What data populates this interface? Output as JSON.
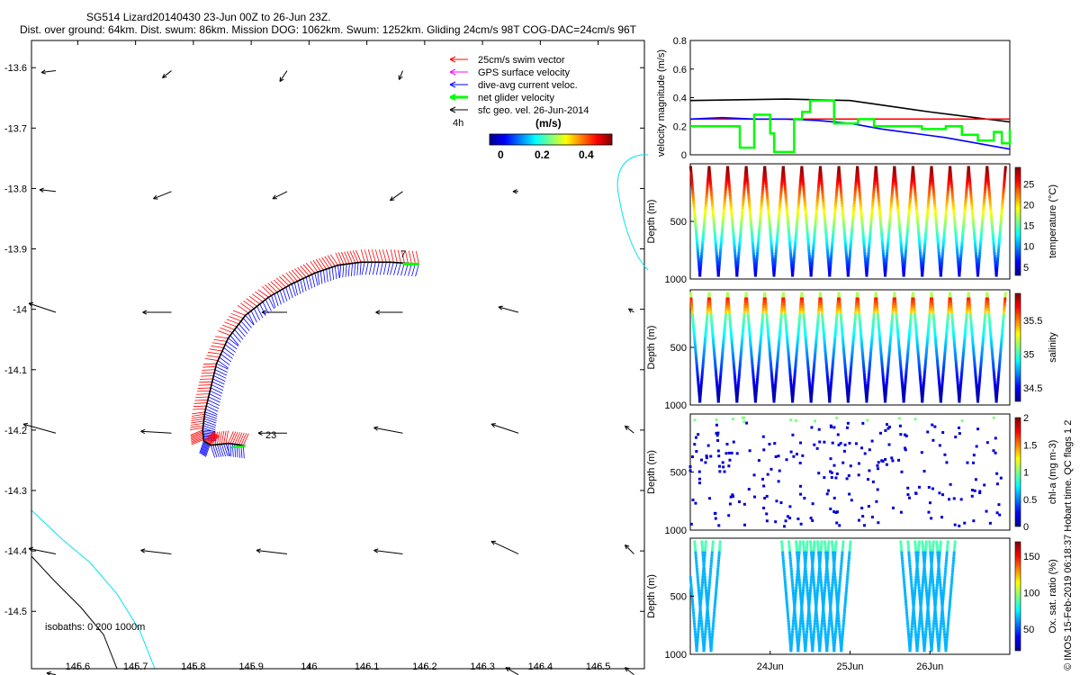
{
  "header": {
    "title": "SG514 Lizard20140430 23-Jun 00Z to 26-Jun 23Z.",
    "subtitle": "Dist. over ground: 64km. Dist. swum: 86km. Mission DOG: 1062km. Swum: 1252km. Gliding 24cm/s 98T COG-DAC=24cm/s 96T"
  },
  "map": {
    "legend": [
      {
        "label": "25cm/s swim vector",
        "color": "#ff0000"
      },
      {
        "label": "GPS surface velocity",
        "color": "#ff00ff"
      },
      {
        "label": "dive-avg current veloc.",
        "color": "#0000ff"
      },
      {
        "label": "net glider velocity",
        "color": "#00ff00"
      },
      {
        "label": "sfc geo. vel. 26-Jun-2014",
        "color": "#000000"
      }
    ],
    "time_label": "4h",
    "colorbar": {
      "unit": "(m/s)",
      "ticks": [
        "0",
        "0.2",
        "0.4"
      ]
    },
    "isobaths_label": "isobaths: 0   200   1000m",
    "point_labels": [
      "7",
      "23"
    ],
    "xticks": [
      "145.6",
      "145.7",
      "145.8",
      "145.9",
      "146",
      "146.1",
      "146.2",
      "146.3",
      "146.4",
      "146.5"
    ],
    "yticks": [
      "-13.6",
      "-13.7",
      "-13.8",
      "-13.9",
      "-14",
      "-14.1",
      "-14.2",
      "-14.3",
      "-14.4",
      "-14.5"
    ],
    "xlim": [
      145.52,
      146.58
    ],
    "ylim": [
      -14.595,
      -13.555
    ],
    "colors": {
      "track": "#000000",
      "swim": "#ff0000",
      "current": "#0000ff",
      "net": "#00ff00",
      "isobath_shallow": "#00e5ee",
      "isobath_deep": "#000000"
    }
  },
  "chart_data": [
    {
      "type": "line",
      "ylabel": "velocity magnitude (m/s)",
      "ylim": [
        0,
        0.8
      ],
      "yticks": [
        "0",
        "0.2",
        "0.4",
        "0.6",
        "0.8"
      ],
      "x_range_days": [
        "23-Jun",
        "27-Jun"
      ],
      "series": [
        {
          "color": "#000000",
          "x": [
            0,
            1.2,
            2.0,
            3.0,
            4.0
          ],
          "values": [
            0.38,
            0.39,
            0.38,
            0.3,
            0.23
          ]
        },
        {
          "color": "#ff0000",
          "x": [
            0,
            1.0,
            2.0,
            3.0,
            4.0
          ],
          "values": [
            0.25,
            0.25,
            0.25,
            0.25,
            0.25
          ]
        },
        {
          "color": "#0000ff",
          "x": [
            0,
            0.4,
            0.8,
            1.2,
            1.6,
            2.0,
            2.4,
            2.8,
            3.2,
            3.6,
            4.0
          ],
          "values": [
            0.25,
            0.26,
            0.25,
            0.25,
            0.24,
            0.22,
            0.18,
            0.15,
            0.12,
            0.08,
            0.04
          ]
        },
        {
          "color": "#00ff00",
          "x": [
            0,
            0.3,
            0.6,
            0.62,
            0.8,
            1.0,
            1.05,
            1.3,
            1.4,
            1.5,
            1.8,
            2.1,
            2.3,
            2.6,
            2.9,
            3.2,
            3.4,
            3.6,
            3.8,
            3.9,
            4.0
          ],
          "values": [
            0.2,
            0.2,
            0.2,
            0.05,
            0.28,
            0.15,
            0.02,
            0.25,
            0.3,
            0.38,
            0.22,
            0.25,
            0.2,
            0.2,
            0.18,
            0.2,
            0.14,
            0.1,
            0.16,
            0.08,
            0.18
          ]
        }
      ]
    },
    {
      "type": "scatter",
      "ylabel": "Depth (m)",
      "colorbar_label": "temperature (°C)",
      "clim": [
        3,
        29
      ],
      "colorbar_ticks": [
        "5",
        "10",
        "15",
        "20",
        "25"
      ],
      "ylim": [
        1000,
        0
      ],
      "yticks": [
        "500",
        "1000"
      ],
      "profile": "temperature",
      "continuous": true
    },
    {
      "type": "scatter",
      "ylabel": "Depth (m)",
      "colorbar_label": "salinity",
      "clim": [
        34.3,
        35.9
      ],
      "colorbar_ticks": [
        "34.5",
        "35",
        "35.5"
      ],
      "ylim": [
        1000,
        0
      ],
      "yticks": [
        "500",
        "1000"
      ],
      "profile": "salinity",
      "continuous": true
    },
    {
      "type": "scatter",
      "ylabel": "Depth (m)",
      "colorbar_label": "chl-a (mg m-3)",
      "clim": [
        0,
        2
      ],
      "colorbar_ticks": [
        "0",
        "0.5",
        "1",
        "1.5",
        "2"
      ],
      "ylim": [
        1000,
        0
      ],
      "yticks": [
        "500",
        "1000"
      ],
      "profile": "chl",
      "continuous": false
    },
    {
      "type": "scatter",
      "ylabel": "Depth (m)",
      "colorbar_label": "Ox. sat. ratio (%)",
      "clim": [
        20,
        170
      ],
      "colorbar_ticks": [
        "50",
        "100",
        "150"
      ],
      "ylim": [
        1000,
        0
      ],
      "yticks": [
        "500",
        "1000"
      ],
      "profile": "oxygen",
      "continuous": true,
      "xticks": [
        "24Jun",
        "25Jun",
        "26Jun"
      ]
    }
  ],
  "side_note": "© IMOS 15-Feb-2019 06:18:37 Hobart time. QC flags 1  2"
}
